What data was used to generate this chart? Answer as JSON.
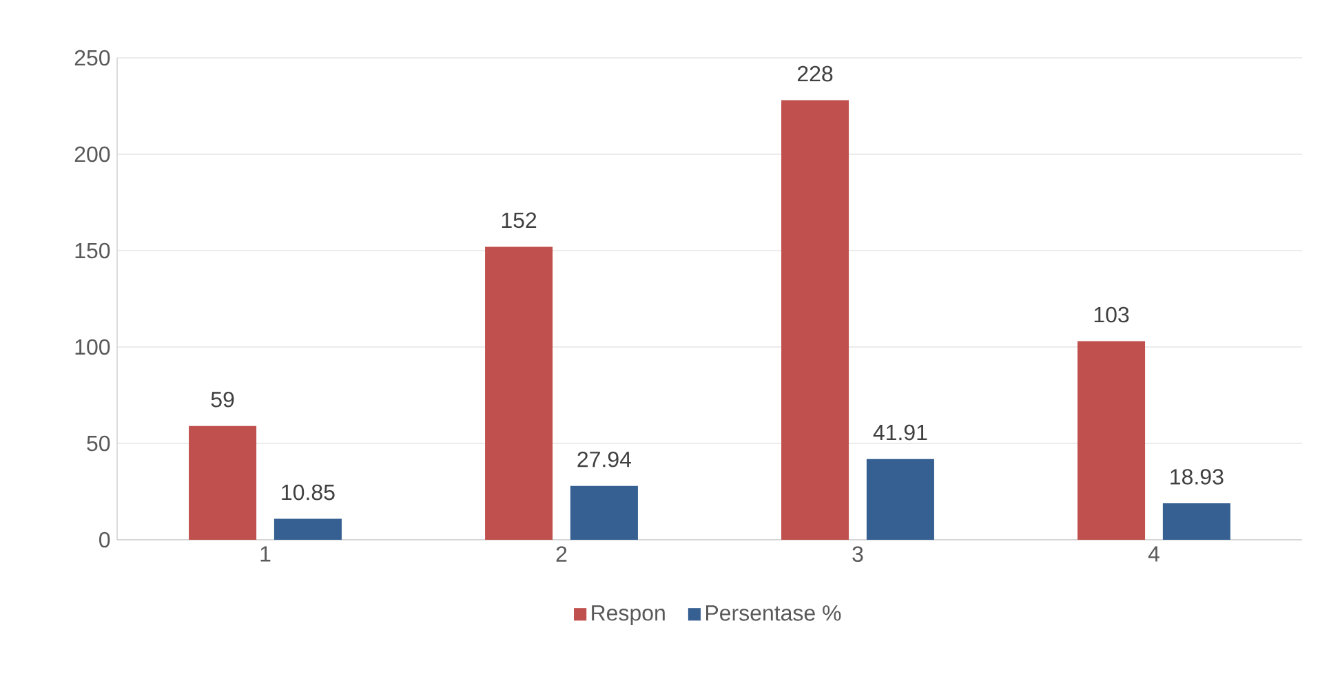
{
  "chart_data": {
    "type": "bar",
    "categories": [
      "1",
      "2",
      "3",
      "4"
    ],
    "series": [
      {
        "name": "Respon",
        "color": "#c0504d",
        "values": [
          59,
          152,
          228,
          103
        ]
      },
      {
        "name": "Persentase %",
        "color": "#366092",
        "values": [
          10.85,
          27.94,
          41.91,
          18.93
        ]
      }
    ],
    "ylim": [
      0,
      250
    ],
    "yticks": [
      0,
      50,
      100,
      150,
      200,
      250
    ],
    "grid": "y",
    "legend": "bottom",
    "data_labels": true
  }
}
